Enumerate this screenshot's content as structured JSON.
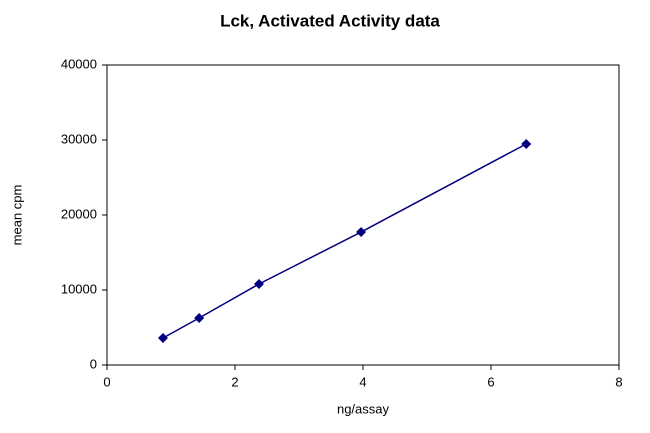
{
  "chart_data": {
    "type": "line",
    "title": "Lck, Activated Activity data",
    "x_label": "ng/assay",
    "y_label": "mean cpm",
    "x": [
      0.875,
      1.44,
      2.375,
      3.97,
      6.55
    ],
    "series": [
      {
        "name": "mean cpm",
        "color": "#000080",
        "values": [
          3600,
          6270,
          10800,
          17730,
          29470
        ]
      }
    ],
    "xlim": [
      0,
      8
    ],
    "xticks": [
      0,
      2,
      4,
      6,
      8
    ],
    "ylim": [
      0,
      40000
    ],
    "yticks": [
      0,
      10000,
      20000,
      30000,
      40000
    ],
    "grid": false
  }
}
